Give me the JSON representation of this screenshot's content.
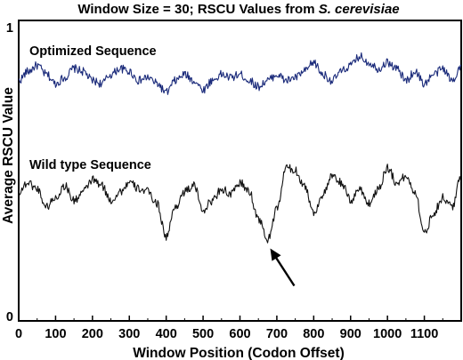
{
  "chart_data": {
    "type": "line",
    "title": "Window Size = 30; RSCU Values from ",
    "title_italic": "S. cerevisiae",
    "xlabel": "Window Position (Codon Offset)",
    "ylabel": "Average RSCU Value",
    "xlim": [
      0,
      1200
    ],
    "ylim": [
      0,
      1
    ],
    "x_ticks": [
      0,
      100,
      200,
      300,
      400,
      500,
      600,
      700,
      800,
      900,
      1000,
      1100
    ],
    "x_tick_labels": [
      "0",
      "100",
      "200",
      "300",
      "400",
      "500",
      "600",
      "700",
      "800",
      "900",
      "1000",
      "1100"
    ],
    "y_tick_labels": [
      "0",
      "1"
    ],
    "y_ticks": [
      0,
      1
    ],
    "grid": false,
    "series": [
      {
        "name": "Optimized Sequence",
        "color": "#1a2a7a",
        "x": [
          0,
          25,
          50,
          75,
          100,
          125,
          150,
          175,
          200,
          225,
          250,
          275,
          300,
          325,
          350,
          375,
          400,
          425,
          450,
          475,
          500,
          525,
          550,
          575,
          600,
          625,
          650,
          675,
          700,
          725,
          750,
          775,
          800,
          825,
          850,
          875,
          900,
          925,
          950,
          975,
          1000,
          1025,
          1050,
          1075,
          1100,
          1125,
          1150,
          1175,
          1200
        ],
        "y": [
          0.8,
          0.83,
          0.85,
          0.82,
          0.79,
          0.81,
          0.84,
          0.83,
          0.8,
          0.79,
          0.82,
          0.84,
          0.83,
          0.8,
          0.81,
          0.79,
          0.76,
          0.8,
          0.82,
          0.8,
          0.77,
          0.8,
          0.82,
          0.81,
          0.82,
          0.8,
          0.78,
          0.8,
          0.82,
          0.8,
          0.81,
          0.83,
          0.86,
          0.82,
          0.8,
          0.83,
          0.85,
          0.88,
          0.86,
          0.84,
          0.86,
          0.84,
          0.8,
          0.83,
          0.79,
          0.82,
          0.84,
          0.8,
          0.85
        ]
      },
      {
        "name": "Wild type Sequence",
        "color": "#111111",
        "x": [
          0,
          25,
          50,
          75,
          100,
          125,
          150,
          175,
          200,
          225,
          250,
          275,
          300,
          325,
          350,
          375,
          400,
          425,
          450,
          475,
          500,
          525,
          550,
          575,
          600,
          625,
          650,
          675,
          700,
          725,
          750,
          775,
          800,
          825,
          850,
          875,
          900,
          925,
          950,
          975,
          1000,
          1025,
          1050,
          1075,
          1100,
          1125,
          1150,
          1175,
          1200
        ],
        "y": [
          0.43,
          0.46,
          0.44,
          0.38,
          0.41,
          0.45,
          0.4,
          0.43,
          0.47,
          0.45,
          0.4,
          0.43,
          0.46,
          0.44,
          0.43,
          0.39,
          0.28,
          0.38,
          0.43,
          0.45,
          0.37,
          0.4,
          0.44,
          0.42,
          0.46,
          0.43,
          0.34,
          0.27,
          0.37,
          0.51,
          0.5,
          0.45,
          0.36,
          0.42,
          0.48,
          0.46,
          0.4,
          0.44,
          0.39,
          0.44,
          0.51,
          0.46,
          0.48,
          0.43,
          0.29,
          0.36,
          0.41,
          0.38,
          0.48
        ]
      }
    ],
    "annotations": [
      {
        "type": "arrow",
        "points_to_x": 670,
        "points_to_y": 0.25
      }
    ]
  }
}
